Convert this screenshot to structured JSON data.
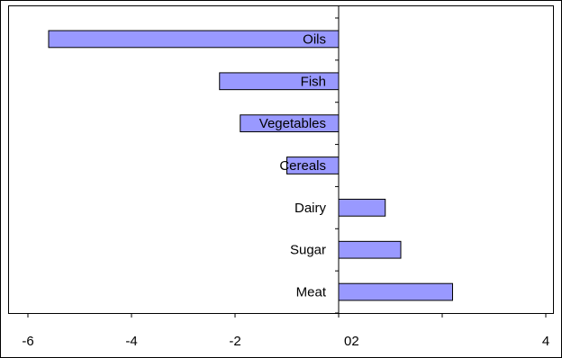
{
  "chart_data": {
    "type": "bar",
    "orientation": "horizontal",
    "categories": [
      "Oils",
      "Fish",
      "Vegetables",
      "Cereals",
      "Dairy",
      "Sugar",
      "Meat"
    ],
    "values": [
      -5.6,
      -2.3,
      -1.9,
      -1.0,
      0.9,
      1.2,
      2.2
    ],
    "xlim": [
      -6,
      4
    ],
    "x_tick_labels": [
      "-6",
      "-4",
      "-2",
      "02",
      "4"
    ],
    "title": "",
    "xlabel": "",
    "ylabel": "",
    "grid": false,
    "legend": "none",
    "bar_color": "#9999ff"
  }
}
